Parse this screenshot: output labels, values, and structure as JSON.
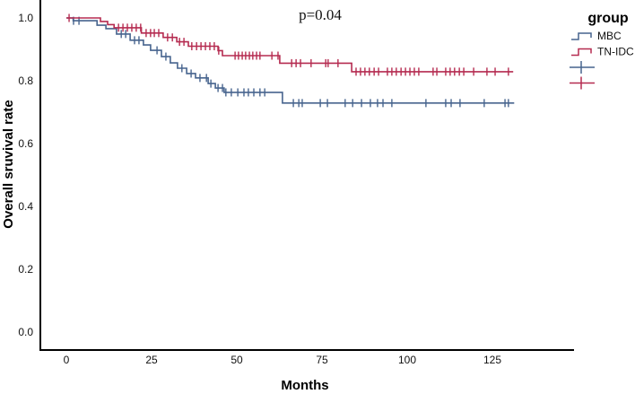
{
  "figure": {
    "background": "#ffffff",
    "axis_color": "#000000"
  },
  "chart_data": {
    "type": "line",
    "subtype": "kaplan_meier_step",
    "title": "",
    "annotation": "p=0.04",
    "xlabel": "Months",
    "ylabel": "Overall sruvival rate",
    "x_ticks": [
      0,
      25,
      50,
      75,
      100,
      125
    ],
    "y_ticks": [
      0.0,
      0.2,
      0.4,
      0.6,
      0.8,
      1.0
    ],
    "xlim": [
      -8,
      149
    ],
    "ylim": [
      -0.06,
      1.06
    ],
    "grid": false,
    "legend": {
      "title": "group",
      "position": "top-right",
      "entries": [
        {
          "label": "MBC",
          "glyph": "step-line",
          "color": "#47648E"
        },
        {
          "label": "TN-IDC",
          "glyph": "step-line",
          "color": "#B52B50"
        },
        {
          "label": "",
          "glyph": "censor-plus",
          "color": "#47648E"
        },
        {
          "label": "",
          "glyph": "censor-plus",
          "color": "#B52B50"
        }
      ]
    },
    "series": [
      {
        "name": "MBC",
        "color": "#47648E",
        "steps": [
          [
            0,
            1.0
          ],
          [
            2,
            0.991
          ],
          [
            9,
            0.977
          ],
          [
            11.6,
            0.966
          ],
          [
            14.7,
            0.949
          ],
          [
            18.7,
            0.929
          ],
          [
            22.6,
            0.914
          ],
          [
            24.7,
            0.897
          ],
          [
            27.9,
            0.877
          ],
          [
            30.5,
            0.857
          ],
          [
            32.6,
            0.84
          ],
          [
            35.3,
            0.823
          ],
          [
            37.9,
            0.809
          ],
          [
            41.6,
            0.791
          ],
          [
            43.7,
            0.777
          ],
          [
            46.3,
            0.763
          ],
          [
            63.4,
            0.729
          ]
        ],
        "end_month": 131.4,
        "censor_months": [
          2.1,
          3.7,
          16.1,
          17.4,
          20.0,
          21.3,
          26.6,
          29.2,
          33.9,
          36.6,
          39.2,
          41.1,
          42.4,
          44.5,
          45.8,
          46.8,
          48.4,
          50.3,
          52.1,
          53.4,
          55.0,
          56.8,
          58.2,
          66.6,
          68.2,
          69.2,
          74.5,
          76.6,
          81.8,
          84.0,
          86.6,
          89.2,
          91.3,
          92.9,
          95.5,
          105.5,
          111.3,
          112.9,
          115.5,
          122.6,
          128.7,
          129.7
        ]
      },
      {
        "name": "TN-IDC",
        "color": "#B52B50",
        "steps": [
          [
            0,
            1.0
          ],
          [
            10,
            0.989
          ],
          [
            12.1,
            0.979
          ],
          [
            14,
            0.969
          ],
          [
            22,
            0.952
          ],
          [
            28.4,
            0.938
          ],
          [
            32.4,
            0.924
          ],
          [
            35.8,
            0.91
          ],
          [
            44.5,
            0.896
          ],
          [
            45.8,
            0.88
          ],
          [
            62.6,
            0.856
          ],
          [
            83.7,
            0.829
          ]
        ],
        "end_month": 131.1,
        "censor_months": [
          0.8,
          15.3,
          16.6,
          17.9,
          19.2,
          20.5,
          21.8,
          23.4,
          24.7,
          25.8,
          27.1,
          29.7,
          31.1,
          33.2,
          34.5,
          36.8,
          38.2,
          39.5,
          40.8,
          42.1,
          43.4,
          44.7,
          49.5,
          50.5,
          51.6,
          52.6,
          53.7,
          54.7,
          55.8,
          56.8,
          60.3,
          62.1,
          66.1,
          67.4,
          68.7,
          71.8,
          76.1,
          76.8,
          79.7,
          85.0,
          86.3,
          87.6,
          88.9,
          90.3,
          91.6,
          94.2,
          95.5,
          96.8,
          98.2,
          99.5,
          100.8,
          102.1,
          103.4,
          107.6,
          108.7,
          111.3,
          112.6,
          113.9,
          115.3,
          116.6,
          119.5,
          123.4,
          125.8,
          129.7
        ]
      }
    ]
  }
}
